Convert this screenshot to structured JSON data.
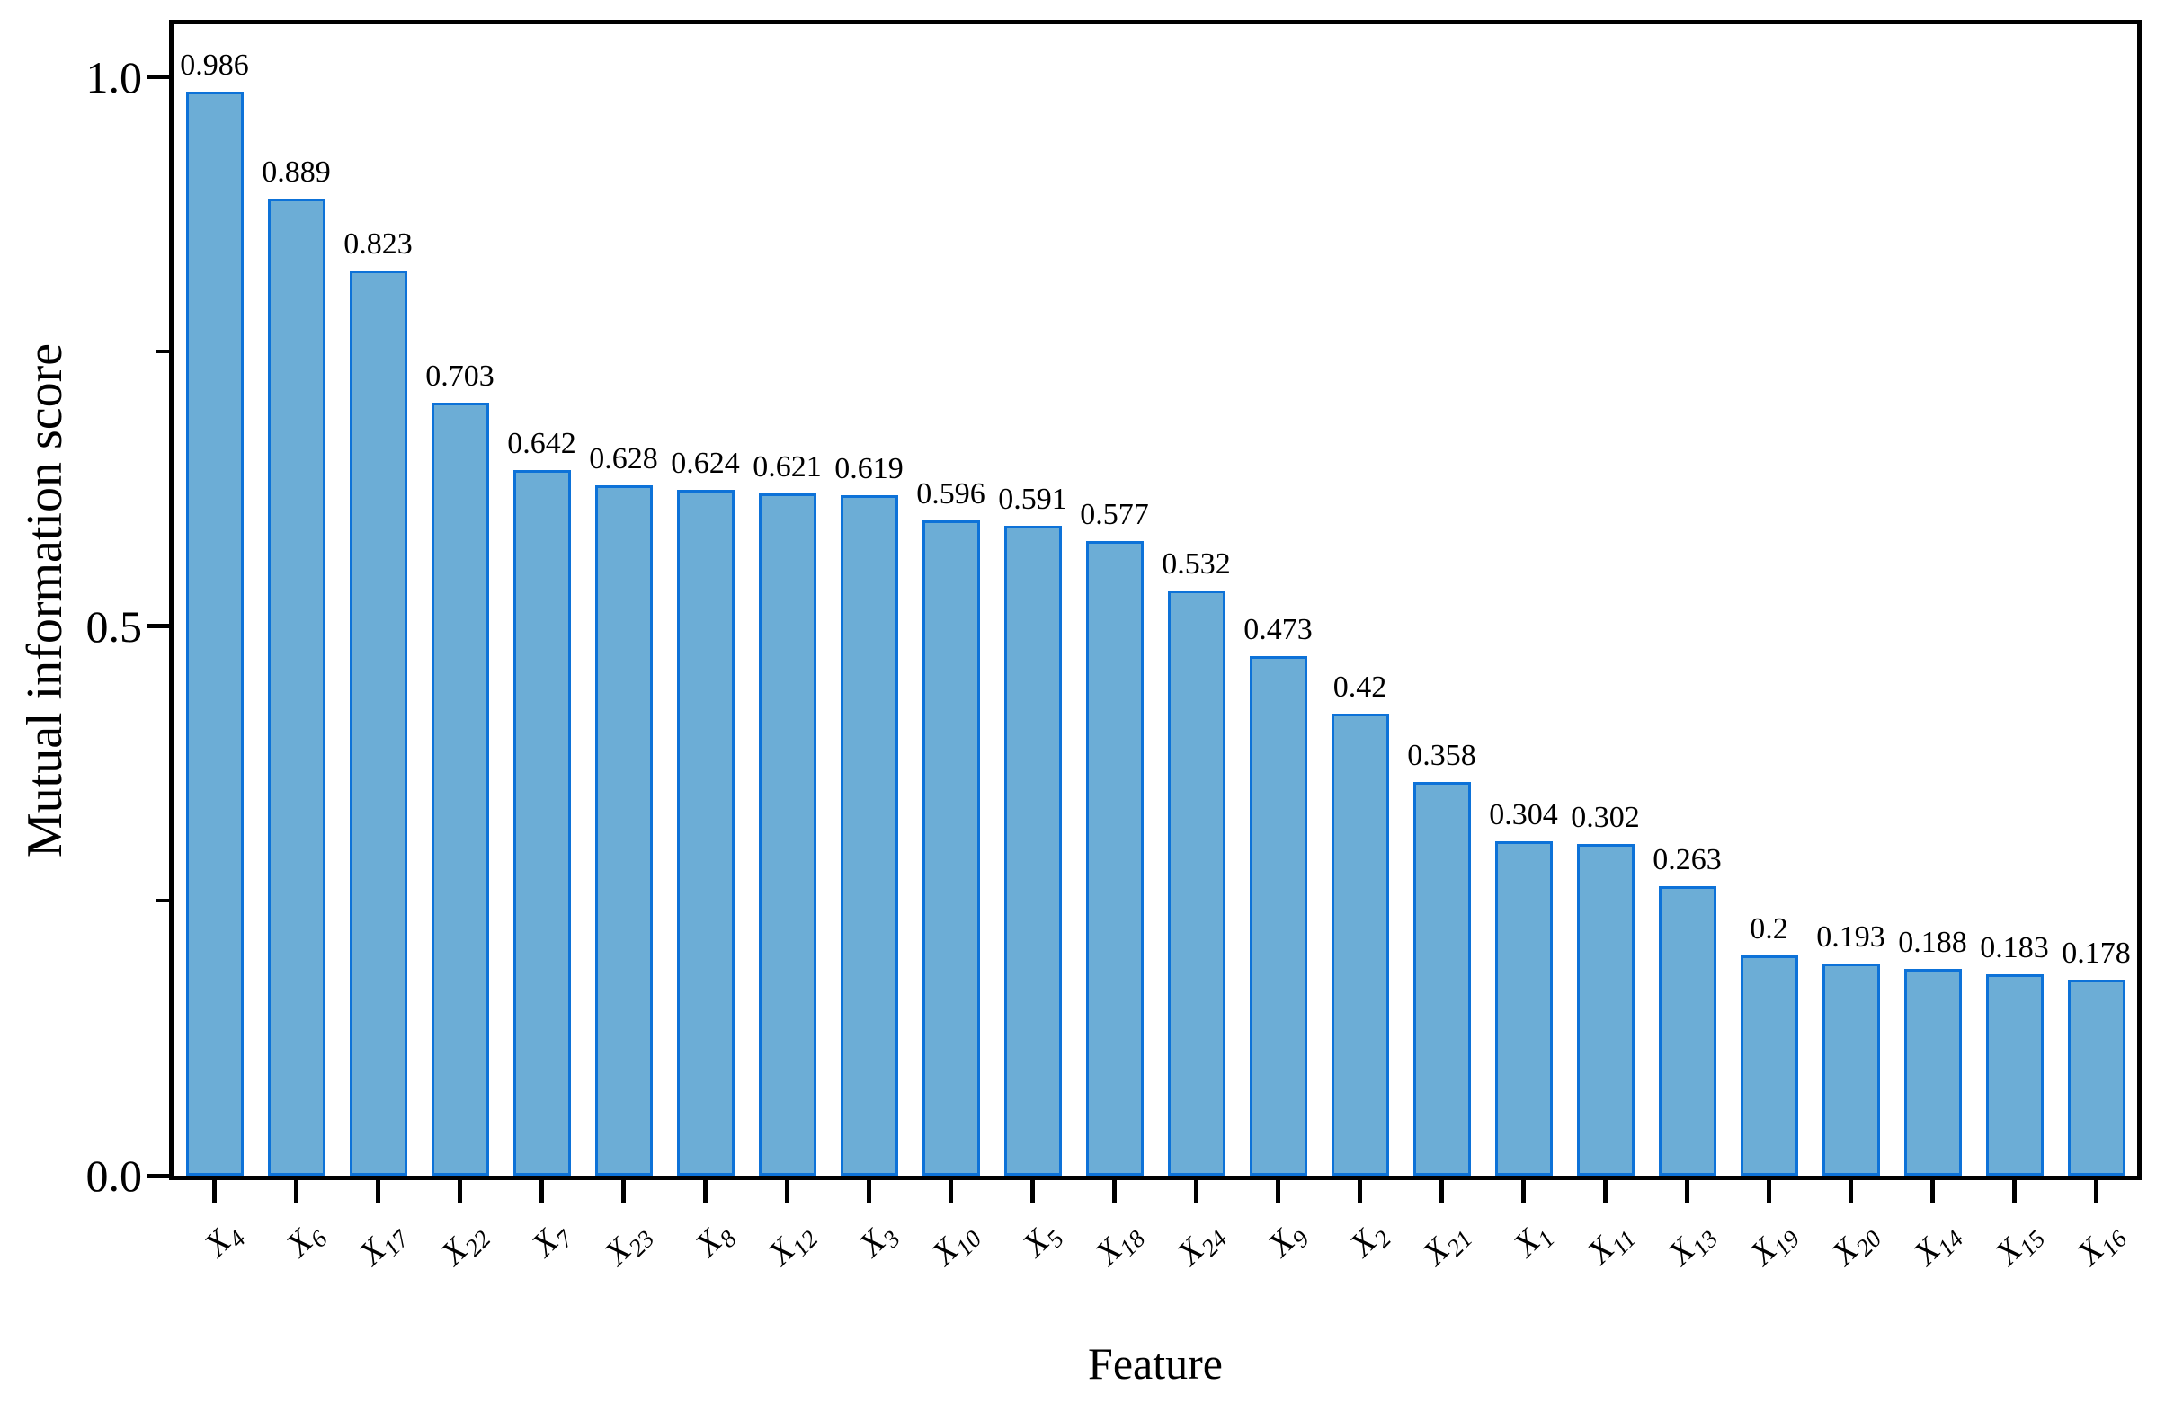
{
  "chart_data": {
    "type": "bar",
    "title": "",
    "xlabel": "Feature",
    "ylabel": "Mutual information score",
    "category_prefix": "X",
    "categories": [
      "X4",
      "X6",
      "X17",
      "X22",
      "X7",
      "X23",
      "X8",
      "X12",
      "X3",
      "X10",
      "X5",
      "X18",
      "X24",
      "X9",
      "X2",
      "X21",
      "X1",
      "X11",
      "X13",
      "X19",
      "X20",
      "X14",
      "X15",
      "X16"
    ],
    "subscripts": [
      "4",
      "6",
      "17",
      "22",
      "7",
      "23",
      "8",
      "12",
      "3",
      "10",
      "5",
      "18",
      "24",
      "9",
      "2",
      "21",
      "1",
      "11",
      "13",
      "19",
      "20",
      "14",
      "15",
      "16"
    ],
    "values": [
      0.986,
      0.889,
      0.823,
      0.703,
      0.642,
      0.628,
      0.624,
      0.621,
      0.619,
      0.596,
      0.591,
      0.577,
      0.532,
      0.473,
      0.42,
      0.358,
      0.304,
      0.302,
      0.263,
      0.2,
      0.193,
      0.188,
      0.183,
      0.178
    ],
    "ylim": [
      0.0,
      1.05
    ],
    "yticks": {
      "major_values": [
        0.0,
        0.5,
        1.0
      ],
      "major_labels": [
        "0.0",
        "0.5",
        "1.0"
      ],
      "minor_values": [
        0.25,
        0.75
      ]
    },
    "grid": false,
    "bar_labels_shown": true,
    "colors": {
      "bar_fill": "#6cadd6",
      "bar_stroke": "#0d72d8",
      "axis": "#000000",
      "text": "#000000"
    }
  }
}
